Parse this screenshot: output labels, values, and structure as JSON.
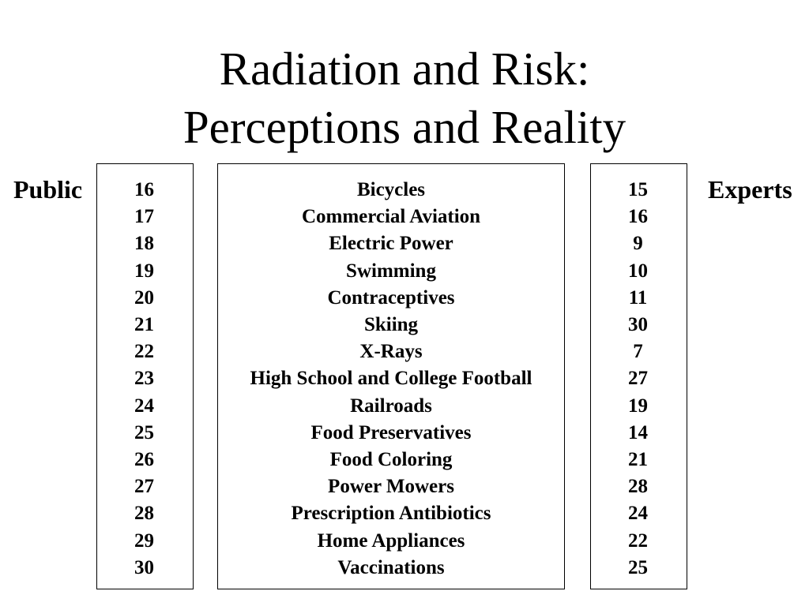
{
  "title": {
    "line1": "Radiation and Risk:",
    "line2": "Perceptions and Reality"
  },
  "labels": {
    "public": "Public",
    "experts": "Experts"
  },
  "public_ranks": [
    "16",
    "17",
    "18",
    "19",
    "20",
    "21",
    "22",
    "23",
    "24",
    "25",
    "26",
    "27",
    "28",
    "29",
    "30"
  ],
  "activities": [
    "Bicycles",
    "Commercial Aviation",
    "Electric Power",
    "Swimming",
    "Contraceptives",
    "Skiing",
    "X-Rays",
    "High School and College Football",
    "Railroads",
    "Food Preservatives",
    "Food Coloring",
    "Power Mowers",
    "Prescription Antibiotics",
    "Home Appliances",
    "Vaccinations"
  ],
  "expert_ranks": [
    "15",
    "16",
    "9",
    "10",
    "11",
    "30",
    "7",
    "27",
    "19",
    "14",
    "21",
    "28",
    "24",
    "22",
    "25"
  ]
}
